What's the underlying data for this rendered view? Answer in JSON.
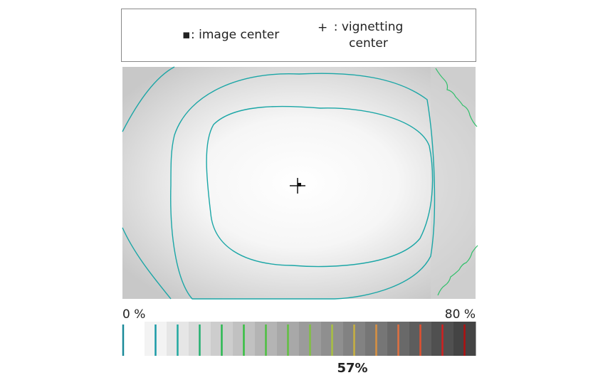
{
  "legend": {
    "items": [
      {
        "symbol": "▪",
        "label": ": image center"
      },
      {
        "symbol": "+",
        "label": ": vignetting center"
      }
    ]
  },
  "scale": {
    "min_label": "0 %",
    "max_label": "80 %"
  },
  "result": "57%"
}
